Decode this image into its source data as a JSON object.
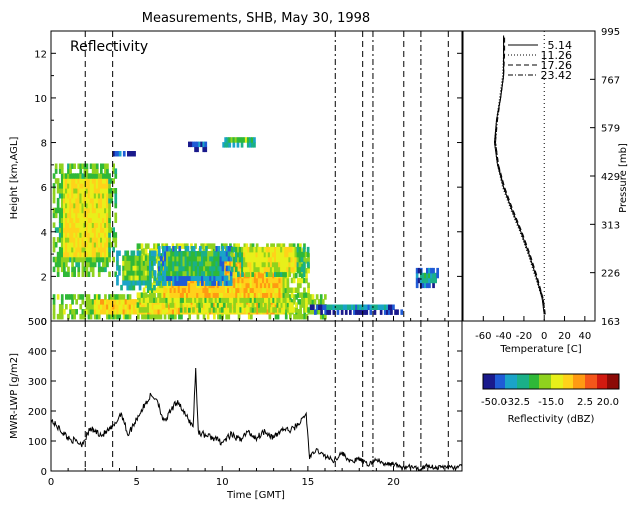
{
  "title": "Measurements, SHB, May 30, 1998",
  "colors": {
    "axis": "#000000",
    "background": "#ffffff"
  },
  "chart_data": [
    {
      "type": "heatmap",
      "panel_label": "Reflectivity",
      "ylabel": "Height [km,AGL]",
      "xlim": [
        0,
        24
      ],
      "ylim": [
        0,
        13
      ],
      "yticks": [
        "0",
        "2",
        "4",
        "6",
        "8",
        "10",
        "12"
      ],
      "dashed_lines_x": [
        2.0,
        3.6,
        16.6,
        18.2,
        18.8,
        20.6,
        21.6,
        23.2
      ],
      "echo_regions": [
        {
          "t0": 0.1,
          "t1": 3.8,
          "h0": 2.0,
          "h1": 7.0,
          "dbz": -10
        },
        {
          "t0": 0.1,
          "t1": 16.0,
          "h0": 0.1,
          "h1": 1.0,
          "dbz": -8
        },
        {
          "t0": 5.0,
          "t1": 15.0,
          "h0": 0.4,
          "h1": 3.4,
          "dbz": -5
        },
        {
          "t0": 3.8,
          "t1": 6.0,
          "h0": 1.4,
          "h1": 3.0,
          "dbz": -20
        },
        {
          "t0": 6.0,
          "t1": 10.5,
          "h0": 1.6,
          "h1": 3.3,
          "dbz": -25
        },
        {
          "t0": 10.5,
          "t1": 15.0,
          "h0": 2.0,
          "h1": 3.3,
          "dbz": -12
        },
        {
          "t0": 3.6,
          "t1": 5.0,
          "h0": 7.4,
          "h1": 7.6,
          "dbz": -30
        },
        {
          "t0": 8.0,
          "t1": 9.2,
          "h0": 7.6,
          "h1": 7.9,
          "dbz": -40
        },
        {
          "t0": 10.0,
          "t1": 11.8,
          "h0": 7.8,
          "h1": 8.2,
          "dbz": -20
        },
        {
          "t0": 15.0,
          "t1": 20.5,
          "h0": 0.3,
          "h1": 0.7,
          "dbz": -35
        },
        {
          "t0": 21.3,
          "t1": 22.6,
          "h0": 1.5,
          "h1": 2.2,
          "dbz": -30
        }
      ]
    },
    {
      "type": "line",
      "xlabel": "Temperature [C]",
      "ylabel": "Pressure [mb]",
      "xticks": [
        "-60",
        "-40",
        "-20",
        "0",
        "20",
        "40"
      ],
      "pressure_ticks": [
        "163",
        "226",
        "313",
        "429",
        "579",
        "767",
        "995"
      ],
      "xlim": [
        -80,
        50
      ],
      "series": [
        {
          "name": "5.14",
          "style": "solid",
          "points": [
            [
              0,
              0.3
            ],
            [
              -2,
              1
            ],
            [
              -8,
              2
            ],
            [
              -15,
              3
            ],
            [
              -23,
              4
            ],
            [
              -32,
              5
            ],
            [
              -40,
              6
            ],
            [
              -46,
              7
            ],
            [
              -49,
              8
            ],
            [
              -47,
              9
            ],
            [
              -43,
              10
            ],
            [
              -40,
              11
            ],
            [
              -40,
              12
            ],
            [
              -40,
              12.8
            ]
          ]
        },
        {
          "name": "11.26",
          "style": "dotted",
          "points": [
            [
              0,
              0.3
            ],
            [
              -2,
              1
            ],
            [
              -9,
              2
            ],
            [
              -16,
              3
            ],
            [
              -24,
              4
            ],
            [
              -33,
              5
            ],
            [
              -41,
              6
            ],
            [
              -46,
              7
            ],
            [
              -49,
              8
            ],
            [
              -47,
              9
            ],
            [
              -44,
              10
            ],
            [
              -41,
              11
            ],
            [
              -40,
              12
            ],
            [
              -40,
              12.8
            ]
          ]
        },
        {
          "name": "17.26",
          "style": "dashed",
          "points": [
            [
              1,
              0.3
            ],
            [
              -1,
              1
            ],
            [
              -7,
              2
            ],
            [
              -14,
              3
            ],
            [
              -22,
              4
            ],
            [
              -31,
              5
            ],
            [
              -39,
              6
            ],
            [
              -45,
              7
            ],
            [
              -48,
              8
            ],
            [
              -47,
              9
            ],
            [
              -43,
              10
            ],
            [
              -40,
              11
            ],
            [
              -39,
              12
            ],
            [
              -39,
              12.8
            ]
          ]
        },
        {
          "name": "23.42",
          "style": "dashdot",
          "points": [
            [
              1,
              0.3
            ],
            [
              -1,
              1
            ],
            [
              -8,
              2
            ],
            [
              -15,
              3
            ],
            [
              -23,
              4
            ],
            [
              -32,
              5
            ],
            [
              -40,
              6
            ],
            [
              -45,
              7
            ],
            [
              -48,
              8
            ],
            [
              -46,
              9
            ],
            [
              -43,
              10
            ],
            [
              -40,
              11
            ],
            [
              -40,
              12
            ],
            [
              -40,
              12.8
            ]
          ]
        }
      ]
    },
    {
      "type": "line",
      "xlabel": "Time [GMT]",
      "ylabel": "MWR-LWP [g/m2]",
      "xlim": [
        0,
        24
      ],
      "ylim": [
        0,
        500
      ],
      "xticks": [
        "0",
        "5",
        "10",
        "15",
        "20"
      ],
      "yticks": [
        "0",
        "100",
        "200",
        "300",
        "400",
        "500"
      ],
      "anchors": [
        [
          0,
          170
        ],
        [
          1,
          110
        ],
        [
          1.8,
          90
        ],
        [
          2.3,
          140
        ],
        [
          3,
          120
        ],
        [
          3.7,
          150
        ],
        [
          4.1,
          195
        ],
        [
          4.5,
          120
        ],
        [
          5,
          175
        ],
        [
          5.8,
          250
        ],
        [
          6.2,
          240
        ],
        [
          6.6,
          160
        ],
        [
          7,
          200
        ],
        [
          7.4,
          235
        ],
        [
          7.8,
          190
        ],
        [
          8.3,
          150
        ],
        [
          8.45,
          340
        ],
        [
          8.6,
          130
        ],
        [
          9,
          120
        ],
        [
          9.5,
          110
        ],
        [
          10,
          95
        ],
        [
          10.5,
          120
        ],
        [
          11,
          105
        ],
        [
          11.5,
          130
        ],
        [
          12,
          110
        ],
        [
          12.5,
          135
        ],
        [
          13,
          110
        ],
        [
          13.5,
          140
        ],
        [
          14,
          135
        ],
        [
          14.5,
          160
        ],
        [
          14.9,
          190
        ],
        [
          15.1,
          45
        ],
        [
          15.5,
          70
        ],
        [
          16,
          50
        ],
        [
          16.5,
          35
        ],
        [
          17,
          60
        ],
        [
          17.5,
          30
        ],
        [
          18,
          40
        ],
        [
          18.5,
          20
        ],
        [
          19,
          40
        ],
        [
          19.5,
          20
        ],
        [
          20,
          25
        ],
        [
          20.5,
          10
        ],
        [
          21,
          15
        ],
        [
          21.5,
          5
        ],
        [
          22,
          20
        ],
        [
          22.5,
          10
        ],
        [
          23,
          15
        ],
        [
          23.5,
          10
        ],
        [
          24,
          15
        ]
      ]
    },
    {
      "type": "heatmap_colorbar",
      "label": "Reflectivity (dBZ)",
      "range": [
        -50,
        20
      ],
      "ticks": [
        "-50.0",
        "-32.5",
        "-15.0",
        "2.5",
        "20.0"
      ],
      "colors": [
        "#1a1a8c",
        "#1f5bd6",
        "#1aa3c8",
        "#1ab088",
        "#2fb838",
        "#8fd21e",
        "#e8f01a",
        "#ffd21a",
        "#ff9a12",
        "#f5561a",
        "#d21a10",
        "#8c0a06"
      ]
    }
  ]
}
